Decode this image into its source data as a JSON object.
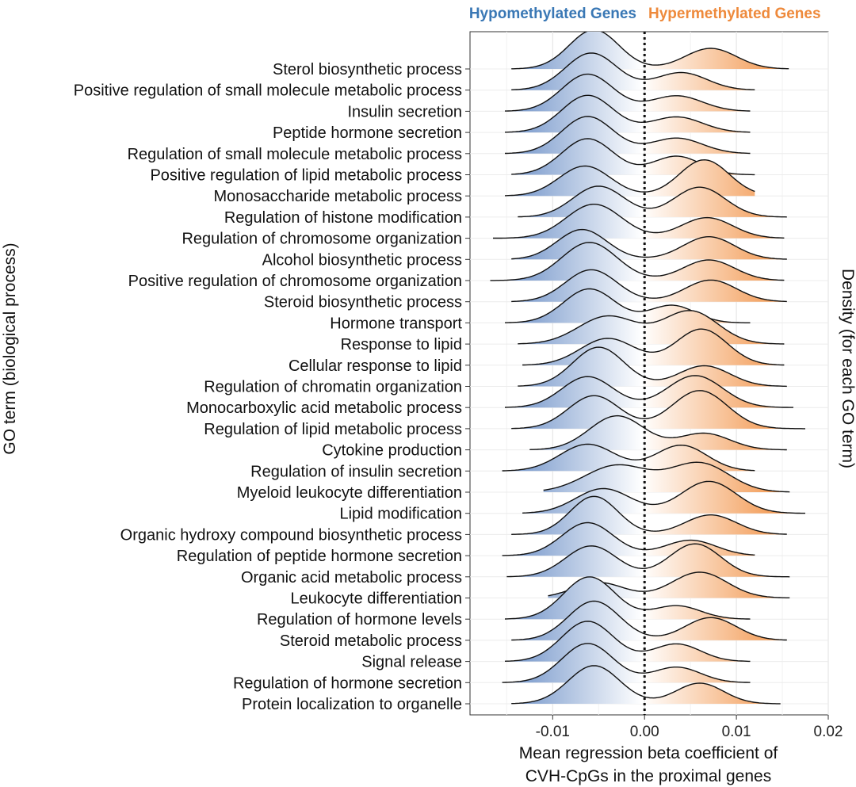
{
  "chart_data": {
    "type": "ridgeline",
    "headers": {
      "left": "Hypomethylated Genes",
      "right": "Hypermethylated Genes",
      "left_color": "#3a78b5",
      "right_color": "#ee8a3c"
    },
    "xlabel_lines": [
      "Mean regression beta coefficient of",
      "CVH-CpGs in the proximal genes"
    ],
    "ylabel": "GO term (biological process)",
    "right_label": "Density (for each GO term)",
    "xlim": [
      -0.019,
      0.02
    ],
    "xticks": [
      -0.01,
      0.0,
      0.01,
      0.02
    ],
    "xtick_labels": [
      "-0.01",
      "0.00",
      "0.01",
      "0.02"
    ],
    "reference_line": {
      "x": 0,
      "style": "dotted"
    },
    "grid": true,
    "fill_colors": {
      "negative": "#6f93c9",
      "positive": "#f08a3a"
    },
    "categories": [
      "Sterol biosynthetic process",
      "Positive regulation of small molecule metabolic process",
      "Insulin secretion",
      "Peptide hormone secretion",
      "Regulation of small molecule metabolic process",
      "Positive regulation of lipid metabolic process",
      "Monosaccharide metabolic process",
      "Regulation of histone modification",
      "Regulation of chromosome organization",
      "Alcohol biosynthetic process",
      "Positive regulation of chromosome organization",
      "Steroid biosynthetic process",
      "Hormone transport",
      "Response to lipid",
      "Cellular response to lipid",
      "Regulation of chromatin organization",
      "Monocarboxylic acid metabolic process",
      "Regulation of lipid metabolic process",
      "Cytokine production",
      "Regulation of insulin secretion",
      "Myeloid leukocyte differentiation",
      "Lipid modification",
      "Organic hydroxy compound biosynthetic process",
      "Regulation of peptide hormone secretion",
      "Organic acid metabolic process",
      "Leukocyte differentiation",
      "Regulation of hormone levels",
      "Steroid metabolic process",
      "Signal release",
      "Regulation of hormone secretion",
      "Protein localization to organelle"
    ],
    "series": [
      {
        "range": [
          -0.0145,
          0.0157
        ],
        "peaks": [
          {
            "mu": -0.0055,
            "sd": 0.0027,
            "h": 1.9
          },
          {
            "mu": 0.0072,
            "sd": 0.0028,
            "h": 1.0
          }
        ]
      },
      {
        "range": [
          -0.0145,
          0.012
        ],
        "peaks": [
          {
            "mu": -0.0058,
            "sd": 0.0028,
            "h": 1.8
          },
          {
            "mu": 0.004,
            "sd": 0.0028,
            "h": 0.85
          }
        ]
      },
      {
        "range": [
          -0.0152,
          0.0115
        ],
        "peaks": [
          {
            "mu": -0.0062,
            "sd": 0.0028,
            "h": 1.8
          },
          {
            "mu": 0.0035,
            "sd": 0.0028,
            "h": 0.75
          }
        ]
      },
      {
        "range": [
          -0.0152,
          0.0115
        ],
        "peaks": [
          {
            "mu": -0.0062,
            "sd": 0.0028,
            "h": 1.8
          },
          {
            "mu": 0.0035,
            "sd": 0.0028,
            "h": 0.75
          }
        ]
      },
      {
        "range": [
          -0.0152,
          0.0115
        ],
        "peaks": [
          {
            "mu": -0.0062,
            "sd": 0.0028,
            "h": 1.8
          },
          {
            "mu": 0.0035,
            "sd": 0.0028,
            "h": 0.75
          }
        ]
      },
      {
        "range": [
          -0.0145,
          0.012
        ],
        "peaks": [
          {
            "mu": -0.0062,
            "sd": 0.0028,
            "h": 1.75
          },
          {
            "mu": 0.0035,
            "sd": 0.0026,
            "h": 0.9
          }
        ]
      },
      {
        "range": [
          -0.0152,
          0.012
        ],
        "peaks": [
          {
            "mu": -0.0065,
            "sd": 0.0028,
            "h": 1.45
          },
          {
            "mu": 0.0065,
            "sd": 0.0027,
            "h": 1.75
          }
        ]
      },
      {
        "range": [
          -0.0138,
          0.0155
        ],
        "peaks": [
          {
            "mu": -0.005,
            "sd": 0.0028,
            "h": 1.5
          },
          {
            "mu": 0.006,
            "sd": 0.0028,
            "h": 1.45
          }
        ]
      },
      {
        "range": [
          -0.0165,
          0.0152
        ],
        "peaks": [
          {
            "mu": -0.0055,
            "sd": 0.003,
            "h": 1.65
          },
          {
            "mu": 0.0068,
            "sd": 0.0028,
            "h": 1.0
          }
        ]
      },
      {
        "range": [
          -0.0145,
          0.0155
        ],
        "peaks": [
          {
            "mu": -0.0068,
            "sd": 0.0027,
            "h": 1.45
          },
          {
            "mu": 0.007,
            "sd": 0.0028,
            "h": 1.1
          }
        ]
      },
      {
        "range": [
          -0.0168,
          0.0152
        ],
        "peaks": [
          {
            "mu": -0.006,
            "sd": 0.003,
            "h": 1.85
          },
          {
            "mu": 0.007,
            "sd": 0.0028,
            "h": 1.0
          }
        ]
      },
      {
        "range": [
          -0.0145,
          0.0155
        ],
        "peaks": [
          {
            "mu": -0.0058,
            "sd": 0.0028,
            "h": 1.55
          },
          {
            "mu": 0.0072,
            "sd": 0.0028,
            "h": 1.05
          }
        ]
      },
      {
        "range": [
          -0.0152,
          0.0115
        ],
        "peaks": [
          {
            "mu": -0.006,
            "sd": 0.0028,
            "h": 1.65
          },
          {
            "mu": 0.003,
            "sd": 0.0025,
            "h": 0.85
          }
        ]
      },
      {
        "range": [
          -0.0138,
          0.0152
        ],
        "peaks": [
          {
            "mu": -0.004,
            "sd": 0.0032,
            "h": 1.35
          },
          {
            "mu": 0.005,
            "sd": 0.003,
            "h": 1.6
          }
        ]
      },
      {
        "range": [
          -0.0133,
          0.0152
        ],
        "peaks": [
          {
            "mu": -0.004,
            "sd": 0.003,
            "h": 1.3
          },
          {
            "mu": 0.0062,
            "sd": 0.0028,
            "h": 1.75
          }
        ]
      },
      {
        "range": [
          -0.0138,
          0.0155
        ],
        "peaks": [
          {
            "mu": -0.005,
            "sd": 0.0028,
            "h": 1.9
          },
          {
            "mu": 0.0065,
            "sd": 0.0028,
            "h": 1.0
          }
        ]
      },
      {
        "range": [
          -0.0152,
          0.0162
        ],
        "peaks": [
          {
            "mu": -0.0062,
            "sd": 0.0028,
            "h": 1.5
          },
          {
            "mu": 0.0055,
            "sd": 0.003,
            "h": 1.55
          }
        ]
      },
      {
        "range": [
          -0.0145,
          0.0175
        ],
        "peaks": [
          {
            "mu": -0.0055,
            "sd": 0.0028,
            "h": 1.6
          },
          {
            "mu": 0.006,
            "sd": 0.003,
            "h": 1.85
          }
        ]
      },
      {
        "range": [
          -0.0125,
          0.0155
        ],
        "peaks": [
          {
            "mu": -0.003,
            "sd": 0.003,
            "h": 1.65
          },
          {
            "mu": 0.0065,
            "sd": 0.0028,
            "h": 0.8
          }
        ]
      },
      {
        "range": [
          -0.0155,
          0.012
        ],
        "peaks": [
          {
            "mu": -0.0062,
            "sd": 0.003,
            "h": 1.3
          },
          {
            "mu": 0.004,
            "sd": 0.0028,
            "h": 1.25
          }
        ]
      },
      {
        "range": [
          -0.011,
          0.0158
        ],
        "peaks": [
          {
            "mu": -0.003,
            "sd": 0.0035,
            "h": 1.3
          },
          {
            "mu": 0.006,
            "sd": 0.0032,
            "h": 1.4
          }
        ]
      },
      {
        "range": [
          -0.0133,
          0.0175
        ],
        "peaks": [
          {
            "mu": -0.0045,
            "sd": 0.003,
            "h": 1.2
          },
          {
            "mu": 0.007,
            "sd": 0.003,
            "h": 1.55
          }
        ]
      },
      {
        "range": [
          -0.0145,
          0.0155
        ],
        "peaks": [
          {
            "mu": -0.0055,
            "sd": 0.0026,
            "h": 1.85
          },
          {
            "mu": 0.0072,
            "sd": 0.0028,
            "h": 0.95
          }
        ]
      },
      {
        "range": [
          -0.0155,
          0.012
        ],
        "peaks": [
          {
            "mu": -0.0062,
            "sd": 0.0028,
            "h": 1.6
          },
          {
            "mu": 0.005,
            "sd": 0.0028,
            "h": 0.75
          }
        ]
      },
      {
        "range": [
          -0.015,
          0.0158
        ],
        "peaks": [
          {
            "mu": -0.0058,
            "sd": 0.0028,
            "h": 1.5
          },
          {
            "mu": 0.0055,
            "sd": 0.0028,
            "h": 1.6
          }
        ]
      },
      {
        "range": [
          -0.0105,
          0.0158
        ],
        "peaks": [
          {
            "mu": -0.005,
            "sd": 0.0028,
            "h": 0.75
          },
          {
            "mu": 0.006,
            "sd": 0.003,
            "h": 1.25
          }
        ]
      },
      {
        "range": [
          -0.0152,
          0.0115
        ],
        "peaks": [
          {
            "mu": -0.006,
            "sd": 0.0028,
            "h": 2.05
          },
          {
            "mu": 0.0035,
            "sd": 0.0026,
            "h": 0.65
          }
        ]
      },
      {
        "range": [
          -0.0145,
          0.0155
        ],
        "peaks": [
          {
            "mu": -0.0055,
            "sd": 0.0028,
            "h": 1.9
          },
          {
            "mu": 0.0072,
            "sd": 0.0028,
            "h": 1.1
          }
        ]
      },
      {
        "range": [
          -0.0152,
          0.0115
        ],
        "peaks": [
          {
            "mu": -0.0062,
            "sd": 0.0028,
            "h": 1.95
          },
          {
            "mu": 0.0035,
            "sd": 0.0026,
            "h": 0.85
          }
        ]
      },
      {
        "range": [
          -0.0155,
          0.0115
        ],
        "peaks": [
          {
            "mu": -0.0062,
            "sd": 0.0028,
            "h": 1.9
          },
          {
            "mu": 0.0035,
            "sd": 0.0026,
            "h": 0.75
          }
        ]
      },
      {
        "range": [
          -0.0145,
          0.0148
        ],
        "peaks": [
          {
            "mu": -0.0055,
            "sd": 0.0028,
            "h": 1.85
          },
          {
            "mu": 0.006,
            "sd": 0.0026,
            "h": 1.0
          }
        ]
      }
    ]
  }
}
